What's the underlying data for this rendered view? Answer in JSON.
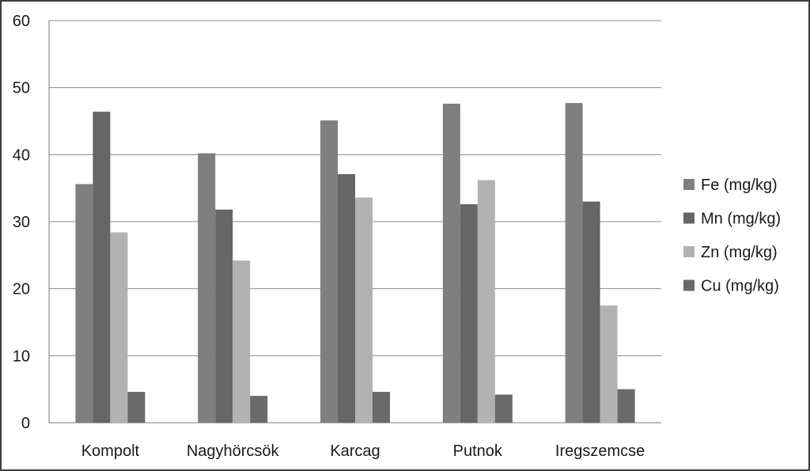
{
  "chart_data": {
    "type": "bar",
    "title": "",
    "xlabel": "",
    "ylabel": "",
    "ylim": [
      0,
      60
    ],
    "yticks": [
      0,
      10,
      20,
      30,
      40,
      50,
      60
    ],
    "grid": true,
    "legend_position": "right",
    "categories": [
      "Kompolt",
      "Nagyhörcsök",
      "Karcag",
      "Putnok",
      "Iregszemcse"
    ],
    "series": [
      {
        "name": "Fe (mg/kg)",
        "color": "#7f7f7f",
        "values": [
          35.6,
          40.2,
          45.1,
          47.6,
          47.7
        ]
      },
      {
        "name": "Mn (mg/kg)",
        "color": "#666666",
        "values": [
          46.4,
          31.8,
          37.1,
          32.6,
          33.0
        ]
      },
      {
        "name": "Zn (mg/kg)",
        "color": "#b2b2b2",
        "values": [
          28.4,
          24.2,
          33.6,
          36.2,
          17.5
        ]
      },
      {
        "name": "Cu (mg/kg)",
        "color": "#6a6a6a",
        "values": [
          4.6,
          4.0,
          4.6,
          4.2,
          5.0
        ]
      }
    ]
  }
}
